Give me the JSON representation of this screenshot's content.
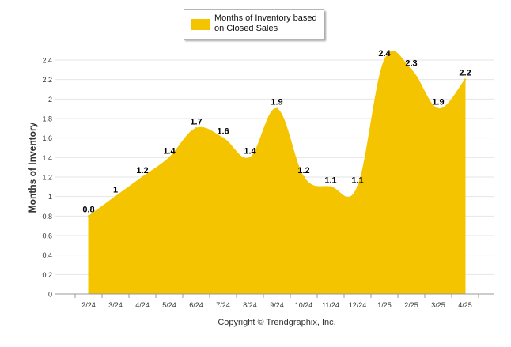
{
  "legend": {
    "label": "Months of Inventory based on Closed Sales"
  },
  "footer": {
    "copyright": "Copyright © Trendgraphix, Inc."
  },
  "colors": {
    "series": "#f5c400",
    "grid": "#e6e6e6",
    "axis": "#999999"
  },
  "chart_data": {
    "type": "area",
    "title": "",
    "xlabel": "",
    "ylabel": "Months of Inventory",
    "ylim": [
      0,
      2.4
    ],
    "yticks": [
      "0",
      "0.2",
      "0.4",
      "0.6",
      "0.8",
      "1",
      "1.2",
      "1.4",
      "1.6",
      "1.8",
      "2",
      "2.2",
      "2.4"
    ],
    "grid": true,
    "legend_position": "top-center",
    "categories": [
      "2/24",
      "3/24",
      "4/24",
      "5/24",
      "6/24",
      "7/24",
      "8/24",
      "9/24",
      "10/24",
      "11/24",
      "12/24",
      "1/25",
      "2/25",
      "3/25",
      "4/25"
    ],
    "series": [
      {
        "name": "Months of Inventory based on Closed Sales",
        "values": [
          0.8,
          1,
          1.2,
          1.4,
          1.7,
          1.6,
          1.4,
          1.9,
          1.2,
          1.1,
          1.1,
          2.4,
          2.3,
          1.9,
          2.2
        ],
        "labels": [
          "0.8",
          "1",
          "1.2",
          "1.4",
          "1.7",
          "1.6",
          "1.4",
          "1.9",
          "1.2",
          "1.1",
          "1.1",
          "2.4",
          "2.3",
          "1.9",
          "2.2"
        ]
      }
    ]
  }
}
